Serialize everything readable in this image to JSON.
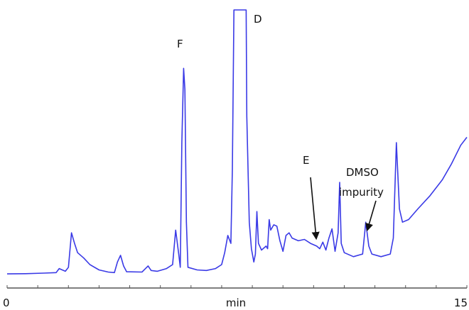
{
  "chart_data": {
    "type": "line",
    "title": "",
    "xlabel": "min",
    "ylabel": "",
    "xlim": [
      0,
      15
    ],
    "ylim": [
      0,
      100
    ],
    "xticks": [
      "0",
      "15"
    ],
    "line_color": "#3a3ae6",
    "axis_color": "#555555",
    "annotations": [
      {
        "text": "F",
        "target": [
          5.8,
          78
        ]
      },
      {
        "text": "D",
        "target": [
          7.9,
          96
        ]
      },
      {
        "text": "E",
        "target": [
          10.2,
          11
        ]
      },
      {
        "text": "DMSO impurity",
        "target": [
          11.7,
          17
        ]
      }
    ],
    "series": [
      {
        "points": [
          [
            0.0,
            0.5
          ],
          [
            0.6,
            0.6
          ],
          [
            1.2,
            0.8
          ],
          [
            1.6,
            1.0
          ],
          [
            1.7,
            2.5
          ],
          [
            1.8,
            2.0
          ],
          [
            1.9,
            1.5
          ],
          [
            2.0,
            3.0
          ],
          [
            2.1,
            16.0
          ],
          [
            2.2,
            12.0
          ],
          [
            2.3,
            8.5
          ],
          [
            2.5,
            6.5
          ],
          [
            2.7,
            4.0
          ],
          [
            3.0,
            2.0
          ],
          [
            3.3,
            1.2
          ],
          [
            3.5,
            1.0
          ],
          [
            3.6,
            5.0
          ],
          [
            3.7,
            7.5
          ],
          [
            3.8,
            3.5
          ],
          [
            3.9,
            1.3
          ],
          [
            4.4,
            1.2
          ],
          [
            4.6,
            3.5
          ],
          [
            4.7,
            1.8
          ],
          [
            4.9,
            1.5
          ],
          [
            5.2,
            2.5
          ],
          [
            5.4,
            4.0
          ],
          [
            5.5,
            17.0
          ],
          [
            5.6,
            8.0
          ],
          [
            5.65,
            3.0
          ],
          [
            5.7,
            50.0
          ],
          [
            5.76,
            78.0
          ],
          [
            5.8,
            70.0
          ],
          [
            5.85,
            20.0
          ],
          [
            5.9,
            3.0
          ],
          [
            6.2,
            2.0
          ],
          [
            6.5,
            1.8
          ],
          [
            6.8,
            2.5
          ],
          [
            7.0,
            4.0
          ],
          [
            7.1,
            8.5
          ],
          [
            7.2,
            15.0
          ],
          [
            7.3,
            12.0
          ],
          [
            7.35,
            40.0
          ],
          [
            7.4,
            100.0
          ],
          [
            7.55,
            100.0
          ],
          [
            7.8,
            100.0
          ],
          [
            7.82,
            60.0
          ],
          [
            7.9,
            20.0
          ],
          [
            7.97,
            10.0
          ],
          [
            8.05,
            5.0
          ],
          [
            8.1,
            8.0
          ],
          [
            8.15,
            24.0
          ],
          [
            8.2,
            12.0
          ],
          [
            8.3,
            9.5
          ],
          [
            8.45,
            11.0
          ],
          [
            8.5,
            10.0
          ],
          [
            8.55,
            21.0
          ],
          [
            8.6,
            17.0
          ],
          [
            8.7,
            19.0
          ],
          [
            8.8,
            18.5
          ],
          [
            8.9,
            13.0
          ],
          [
            9.0,
            9.0
          ],
          [
            9.1,
            15.0
          ],
          [
            9.2,
            16.0
          ],
          [
            9.3,
            14.0
          ],
          [
            9.5,
            13.0
          ],
          [
            9.7,
            13.5
          ],
          [
            9.9,
            12.0
          ],
          [
            10.1,
            11.0
          ],
          [
            10.2,
            10.0
          ],
          [
            10.3,
            12.5
          ],
          [
            10.4,
            9.5
          ],
          [
            10.5,
            14.0
          ],
          [
            10.6,
            17.5
          ],
          [
            10.7,
            9.0
          ],
          [
            10.8,
            16.0
          ],
          [
            10.85,
            35.0
          ],
          [
            10.9,
            12.0
          ],
          [
            11.0,
            8.5
          ],
          [
            11.3,
            7.0
          ],
          [
            11.6,
            8.0
          ],
          [
            11.7,
            20.0
          ],
          [
            11.8,
            11.0
          ],
          [
            11.9,
            8.0
          ],
          [
            12.2,
            7.0
          ],
          [
            12.5,
            8.0
          ],
          [
            12.6,
            14.0
          ],
          [
            12.7,
            50.0
          ],
          [
            12.8,
            25.0
          ],
          [
            12.9,
            20.0
          ],
          [
            13.1,
            21.0
          ],
          [
            13.4,
            25.0
          ],
          [
            13.8,
            30.0
          ],
          [
            14.2,
            36.0
          ],
          [
            14.5,
            42.0
          ],
          [
            14.8,
            49.0
          ],
          [
            15.0,
            52.0
          ]
        ]
      }
    ]
  }
}
